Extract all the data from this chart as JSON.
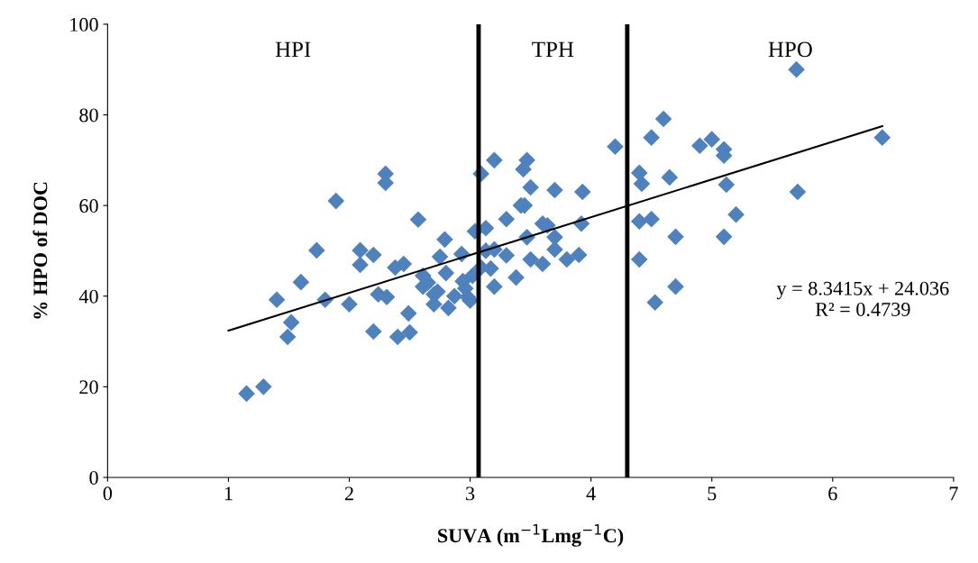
{
  "chart_data": {
    "type": "scatter",
    "xlabel": "SUVA (m$^{−1}$Lmg$^{−1}$C)",
    "ylabel": "% HPO of DOC",
    "xlim": [
      0,
      7
    ],
    "xticks": [
      0,
      1,
      2,
      3,
      4,
      5,
      6,
      7
    ],
    "ylim": [
      0,
      100
    ],
    "yticks": [
      0,
      20,
      40,
      60,
      80,
      100
    ],
    "grid": false,
    "legend": false,
    "annotations": [
      "HPI",
      "TPH",
      "HPO",
      "y = 8.3415x + 24.036\nR² = 0.4739"
    ],
    "ref_lines": [
      {
        "axis": "x",
        "value": 3.07,
        "color": "#000000"
      },
      {
        "axis": "x",
        "value": 4.3,
        "color": "#000000"
      }
    ],
    "series": [
      {
        "color": "#4f81bd",
        "marker": "diamond",
        "x": [
          1.15,
          1.29,
          1.4,
          1.52,
          1.49,
          1.6,
          1.73,
          1.8,
          1.89,
          2.0,
          2.09,
          2.09,
          2.2,
          2.2,
          2.3,
          2.3,
          2.38,
          2.45,
          2.24,
          2.31,
          2.4,
          2.5,
          2.49,
          2.57,
          2.79,
          2.75,
          2.61,
          2.61,
          2.7,
          2.7,
          2.8,
          2.93,
          2.94,
          2.82,
          2.87,
          2.98,
          3.04,
          2.96,
          3.0,
          3.02,
          2.65,
          2.73,
          3.09,
          3.2,
          3.47,
          3.44,
          3.5,
          3.7,
          3.93,
          4.2,
          3.45,
          3.42,
          3.3,
          3.13,
          3.6,
          3.64,
          3.92,
          3.47,
          3.7,
          3.13,
          3.2,
          3.3,
          3.7,
          3.5,
          3.6,
          3.8,
          3.9,
          3.09,
          3.17,
          3.38,
          3.2,
          5.7,
          4.6,
          4.5,
          4.9,
          5.0,
          5.1,
          5.1,
          6.41,
          4.4,
          4.42,
          4.65,
          5.12,
          5.71,
          4.4,
          4.5,
          4.7,
          5.1,
          5.2,
          4.4,
          4.7,
          4.53
        ],
        "values": [
          18.5,
          20,
          39.2,
          34.2,
          31,
          43.1,
          50.1,
          39.2,
          61,
          38.2,
          50.1,
          46.9,
          49.1,
          32.2,
          67,
          65,
          46.3,
          47.1,
          40.4,
          39.8,
          31,
          32,
          36.2,
          56.9,
          52.5,
          48.7,
          44.5,
          42.1,
          40.4,
          38.2,
          45.1,
          49.3,
          43.3,
          37.4,
          40,
          39.8,
          54.3,
          41.7,
          39,
          44.5,
          43,
          41,
          67,
          70,
          70,
          68,
          64,
          63.4,
          63,
          73,
          60,
          60,
          57,
          55,
          56,
          55.6,
          56,
          53,
          53,
          50,
          50.3,
          49,
          50.3,
          48.1,
          47.1,
          48.1,
          49.1,
          46.3,
          46.1,
          44.1,
          42.1,
          90,
          79.1,
          75,
          73.2,
          74.6,
          72.4,
          71,
          75,
          67.2,
          64.8,
          66.2,
          64.6,
          63,
          56.5,
          57,
          53.1,
          53.1,
          58,
          48.1,
          42.1,
          38.6
        ]
      },
      {
        "type": "line",
        "color": "#000000",
        "marker": "none",
        "line_style": "solid",
        "x": [
          1,
          6.41
        ],
        "values": [
          32.4,
          77.5
        ]
      }
    ]
  }
}
